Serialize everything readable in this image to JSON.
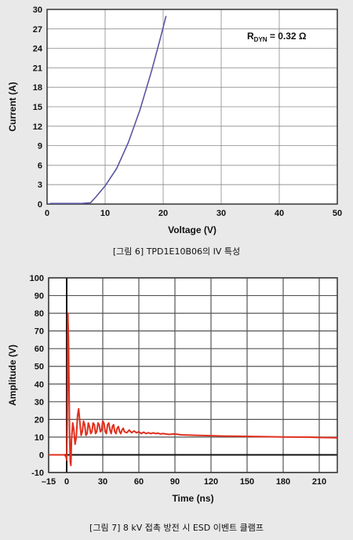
{
  "figures": [
    {
      "caption": "[그림 6] TPD1E10B06의 IV 특성"
    },
    {
      "caption": "[그림 7] 8 kV 접촉 방전 시 ESD 이벤트 클램프"
    }
  ],
  "chart_data": [
    {
      "type": "line",
      "xlabel": "Voltage (V)",
      "ylabel": "Current (A)",
      "xlim": [
        0,
        50
      ],
      "ylim": [
        0,
        30
      ],
      "xticks": [
        0,
        10,
        20,
        30,
        40,
        50
      ],
      "yticks": [
        0,
        3,
        6,
        9,
        12,
        15,
        18,
        21,
        24,
        27,
        30
      ],
      "grid": true,
      "annotation": {
        "main": "R",
        "sub": "DYN",
        "rest": " = 0.32 Ω"
      },
      "series": [
        {
          "color": "#5a57a0",
          "x": [
            0.5,
            2,
            4,
            6,
            7.5,
            8.5,
            10,
            12,
            14,
            16,
            18,
            19.5,
            20.5
          ],
          "y": [
            0.1,
            0.1,
            0.1,
            0.1,
            0.2,
            1.2,
            2.8,
            5.5,
            9.5,
            14.5,
            20.5,
            25.5,
            29
          ]
        }
      ]
    },
    {
      "type": "line",
      "xlabel": "Time (ns)",
      "ylabel": "Amplitude (V)",
      "xlim": [
        -15,
        225
      ],
      "ylim": [
        -10,
        100
      ],
      "xticks": [
        -15,
        0,
        30,
        60,
        90,
        120,
        150,
        180,
        210
      ],
      "xticklabels": [
        "–15",
        "0",
        "30",
        "60",
        "90",
        "120",
        "150",
        "180",
        "210"
      ],
      "yticks": [
        -10,
        0,
        10,
        20,
        30,
        40,
        50,
        60,
        70,
        80,
        90,
        100
      ],
      "grid": true,
      "series": [
        {
          "color": "#e0301e",
          "x": [
            -15,
            -2,
            -0.5,
            0,
            0.5,
            1,
            1.5,
            2,
            2.5,
            3,
            3.5,
            4,
            5,
            6,
            7,
            8,
            9,
            10,
            11,
            12,
            13,
            14,
            15,
            16,
            17,
            18,
            19,
            20,
            21,
            22,
            23,
            24,
            25,
            26,
            27,
            28,
            29,
            30,
            31,
            32,
            33,
            34,
            35,
            36,
            37,
            38,
            39,
            40,
            41,
            42,
            43,
            44,
            45,
            46,
            47,
            48,
            50,
            52,
            54,
            56,
            58,
            60,
            62,
            64,
            66,
            68,
            70,
            72,
            74,
            76,
            78,
            80,
            85,
            90,
            95,
            100,
            110,
            120,
            130,
            140,
            150,
            160,
            170,
            180,
            190,
            200,
            210,
            225
          ],
          "y": [
            0,
            0,
            -1,
            -3,
            20,
            80,
            65,
            35,
            10,
            -4,
            -6,
            8,
            18,
            14,
            6,
            10,
            22,
            26,
            18,
            11,
            13,
            19,
            17,
            11,
            12,
            18,
            16,
            12,
            13,
            18,
            17,
            12,
            13,
            18,
            17,
            13,
            14,
            19,
            18,
            13,
            12,
            17,
            18,
            14,
            12,
            16,
            17,
            13,
            12,
            15,
            16,
            13,
            12,
            14,
            15,
            13,
            12.5,
            14,
            12.5,
            13.5,
            12.5,
            13,
            12,
            12.8,
            12,
            12.5,
            12,
            12.4,
            12,
            12.2,
            11.8,
            12,
            11.5,
            11.8,
            11.3,
            11.2,
            11,
            10.8,
            10.6,
            10.5,
            10.4,
            10.3,
            10.2,
            10.1,
            10,
            10,
            9.8,
            9.6
          ]
        }
      ]
    }
  ]
}
